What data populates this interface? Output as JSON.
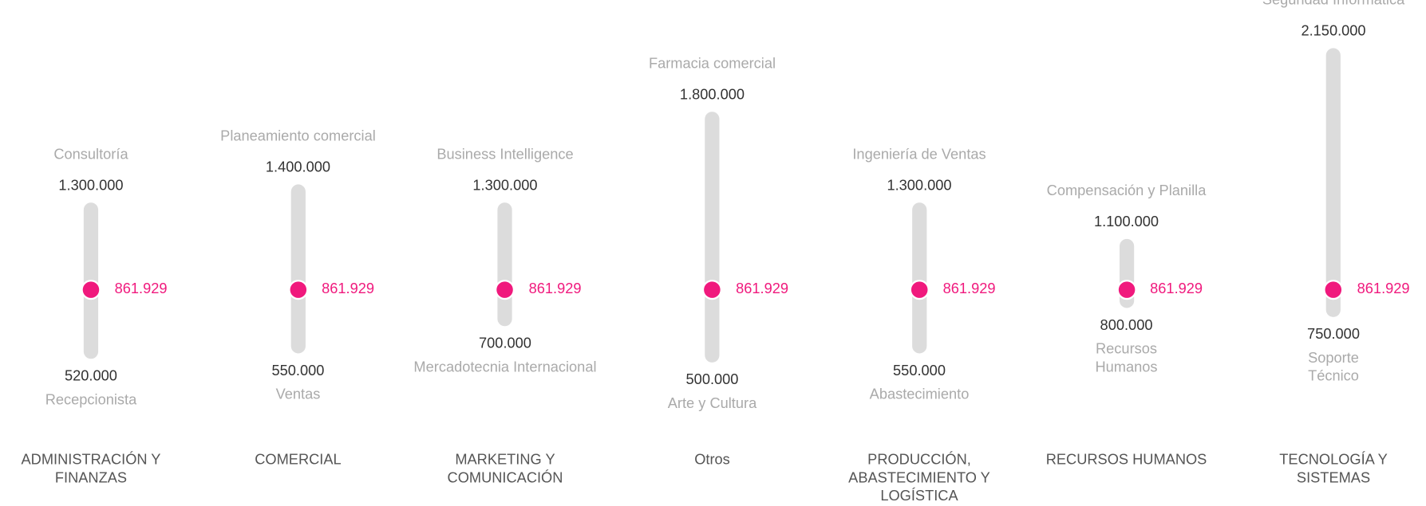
{
  "chart_data": {
    "type": "range",
    "categories": [
      "ADMINISTRACIÓN Y FINANZAS",
      "COMERCIAL",
      "MARKETING Y COMUNICACIÓN",
      "Otros",
      "PRODUCCIÓN, ABASTECIMIENTO Y LOGÍSTICA",
      "RECURSOS HUMANOS",
      "TECNOLOGÍA Y SISTEMAS"
    ],
    "max": [
      1300000,
      1400000,
      1300000,
      1800000,
      1300000,
      1100000,
      2150000
    ],
    "max_value_labels": [
      "1.300.000",
      "1.400.000",
      "1.300.000",
      "1.800.000",
      "1.300.000",
      "1.100.000",
      "2.150.000"
    ],
    "max_roles": [
      "Consultoría",
      "Planeamiento comercial",
      "Business Intelligence",
      "Farmacia comercial",
      "Ingeniería de Ventas",
      "Compensación y Planilla",
      "Seguridad Informática"
    ],
    "min": [
      520000,
      550000,
      700000,
      500000,
      550000,
      800000,
      750000
    ],
    "min_value_labels": [
      "520.000",
      "550.000",
      "700.000",
      "500.000",
      "550.000",
      "800.000",
      "750.000"
    ],
    "min_roles": [
      "Recepcionista",
      "Ventas",
      "Mercadotecnia Internacional",
      "Arte y Cultura",
      "Abastecimiento",
      "Recursos Humanos",
      "Soporte Técnico"
    ],
    "marker": 861929,
    "marker_label": "861.929",
    "bar_color": "#dcdcdc",
    "marker_color": "#f0197d"
  }
}
